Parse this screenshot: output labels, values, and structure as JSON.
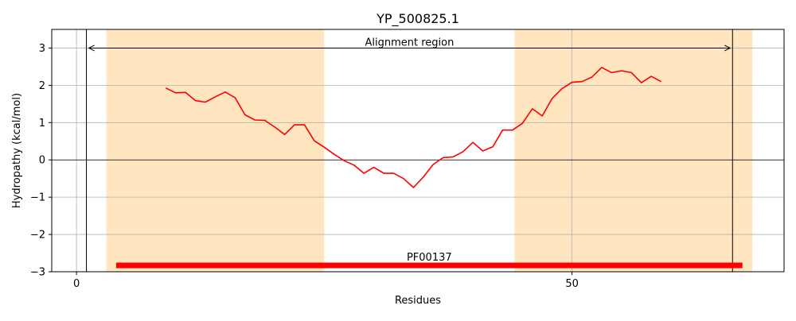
{
  "chart_data": {
    "type": "line",
    "title": "YP_500825.1",
    "xlabel": "Residues",
    "ylabel": "Hydropathy (kcal/mol)",
    "xlim": [
      -2.5,
      71.4
    ],
    "ylim": [
      -3,
      3.5
    ],
    "xticks": [
      0,
      50
    ],
    "yticks": [
      3,
      2,
      1,
      0,
      -1,
      -2,
      -3
    ],
    "ytick_labels": [
      "3",
      "2",
      "1",
      "0",
      "−1",
      "−2",
      "−3"
    ],
    "grid": true,
    "shaded_regions": [
      [
        3,
        25
      ],
      [
        44.2,
        68.2
      ]
    ],
    "shade_color": "#ffe6c0",
    "line_color": "#ff0000",
    "series": [
      {
        "x": [
          9,
          10,
          11,
          12,
          13,
          14,
          15,
          16,
          17,
          18,
          19,
          20,
          21,
          22,
          23,
          24,
          25,
          26,
          27,
          28,
          29,
          30,
          31,
          32,
          33,
          34,
          35,
          36,
          37,
          38,
          39,
          40,
          41,
          42,
          43,
          44,
          45,
          46,
          47,
          48,
          49,
          50,
          51,
          52,
          53,
          54,
          55,
          56,
          57,
          58,
          59
        ],
        "values": [
          1.93,
          1.8,
          1.81,
          1.59,
          1.55,
          1.69,
          1.82,
          1.67,
          1.21,
          1.07,
          1.06,
          0.88,
          0.68,
          0.94,
          0.94,
          0.51,
          0.34,
          0.15,
          -0.02,
          -0.14,
          -0.36,
          -0.2,
          -0.36,
          -0.36,
          -0.5,
          -0.74,
          -0.46,
          -0.12,
          0.06,
          0.08,
          0.22,
          0.47,
          0.24,
          0.35,
          0.8,
          0.8,
          0.98,
          1.37,
          1.18,
          1.65,
          1.91,
          2.08,
          2.1,
          2.22,
          2.48,
          2.34,
          2.39,
          2.34,
          2.07,
          2.24,
          2.1
        ]
      }
    ],
    "alignment": {
      "label": "Alignment region",
      "start": 1,
      "end": 66.2,
      "y": 3
    },
    "domain": {
      "label": "PF00137",
      "start": 4,
      "end": 67.2,
      "y": -2.83,
      "color": "#ff0000"
    }
  }
}
